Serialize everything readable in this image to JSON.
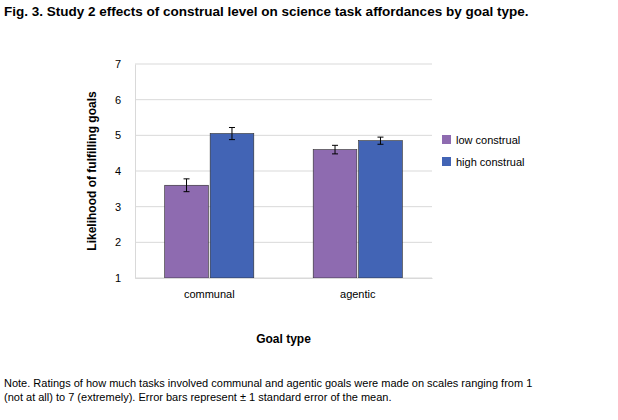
{
  "chart_data": {
    "type": "bar",
    "title": "Fig. 3. Study 2 effects of construal level on science task affordances by goal type.",
    "x_label": "Goal type",
    "y_label": "Likelihood of fulfilling goals",
    "categories": [
      "communal",
      "agentic"
    ],
    "series": [
      {
        "name": "low construal",
        "color": "#8e6bb0",
        "values": [
          3.6,
          4.6
        ],
        "errors": [
          0.18,
          0.12
        ]
      },
      {
        "name": "high construal",
        "color": "#4264b5",
        "values": [
          5.05,
          4.85
        ],
        "errors": [
          0.17,
          0.1
        ]
      }
    ],
    "ylim": [
      1,
      7
    ],
    "yticks": [
      1,
      2,
      3,
      4,
      5,
      6,
      7
    ],
    "grid": true,
    "legend": "right",
    "note": [
      "Note. Ratings of how much tasks involved communal and agentic goals were made on scales ranging from 1",
      "(not at all) to 7 (extremely). Error bars represent ± 1 standard error of the mean."
    ]
  }
}
